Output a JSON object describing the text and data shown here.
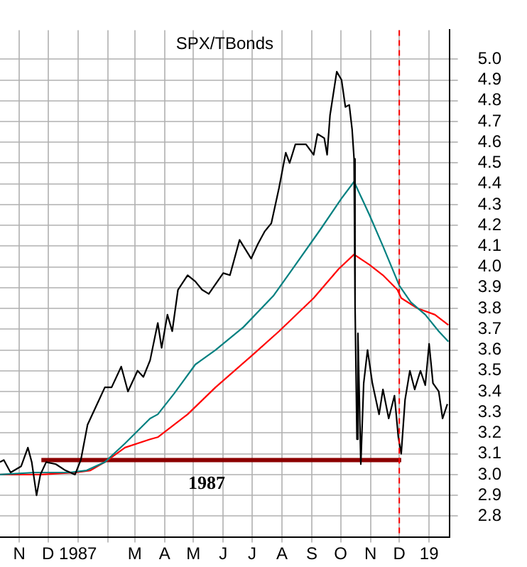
{
  "chart_data": {
    "type": "line",
    "title": "SPX/TBonds",
    "xlim": [
      "1986-10-12",
      "1988-01-22"
    ],
    "ylim": [
      2.7,
      5.14
    ],
    "xticks": [
      {
        "value": "1986-11-01",
        "label": "N"
      },
      {
        "value": "1986-12-01",
        "label": "D"
      },
      {
        "value": "1987-01-01",
        "label": "1987"
      },
      {
        "value": "1987-02-01",
        "label": null
      },
      {
        "value": "1987-03-01",
        "label": "M"
      },
      {
        "value": "1987-04-01",
        "label": "A"
      },
      {
        "value": "1987-05-01",
        "label": "M"
      },
      {
        "value": "1987-06-01",
        "label": "J"
      },
      {
        "value": "1987-07-01",
        "label": "J"
      },
      {
        "value": "1987-08-01",
        "label": "A"
      },
      {
        "value": "1987-09-01",
        "label": "S"
      },
      {
        "value": "1987-10-01",
        "label": "O"
      },
      {
        "value": "1987-11-01",
        "label": "N"
      },
      {
        "value": "1987-12-01",
        "label": "D"
      },
      {
        "value": "1988-01-01",
        "label": "19"
      }
    ],
    "yticks": [
      2.8,
      2.9,
      {
        "value": 3,
        "label": "3.0"
      },
      3.1,
      3.2,
      3.3,
      3.4,
      3.5,
      3.6,
      3.7,
      3.8,
      3.9,
      {
        "value": 4,
        "label": "4.0"
      },
      4.1,
      4.2,
      4.3,
      4.4,
      4.5,
      4.6,
      4.7,
      4.8,
      4.9,
      {
        "value": 5,
        "label": "5.0"
      }
    ],
    "grid": true,
    "legend": false,
    "marker": "none",
    "line_style": "solid",
    "series": [
      {
        "color": "#000000",
        "x": [
          "1986-10-12",
          "1986-10-16",
          "1986-10-23",
          "1986-11-03",
          "1986-11-10",
          "1986-11-14",
          "1986-11-19",
          "1986-11-23",
          "1986-11-29",
          "1986-12-09",
          "1986-12-19",
          "1986-12-29",
          "1987-01-04",
          "1987-01-11",
          "1987-01-21",
          "1987-01-29",
          "1987-02-05",
          "1987-02-15",
          "1987-02-22",
          "1987-03-04",
          "1987-03-10",
          "1987-03-17",
          "1987-03-25",
          "1987-03-29",
          "1987-04-04",
          "1987-04-09",
          "1987-04-15",
          "1987-04-25",
          "1987-05-03",
          "1987-05-10",
          "1987-05-17",
          "1987-06-01",
          "1987-06-08",
          "1987-06-18",
          "1987-06-30",
          "1987-07-07",
          "1987-07-14",
          "1987-07-21",
          "1987-07-29",
          "1987-08-05",
          "1987-08-09",
          "1987-08-15",
          "1987-08-26",
          "1987-09-03",
          "1987-09-07",
          "1987-09-14",
          "1987-09-17",
          "1987-09-20",
          "1987-09-27",
          "1987-10-02",
          "1987-10-06",
          "1987-10-10",
          "1987-10-13",
          "1987-10-15",
          "1987-10-16",
          "1987-10-18",
          "1987-10-19",
          "1987-10-22",
          "1987-10-25",
          "1987-10-29",
          "1987-11-03",
          "1987-11-10",
          "1987-11-14",
          "1987-11-20",
          "1987-11-26",
          "1987-11-30",
          "1987-12-03",
          "1987-12-07",
          "1987-12-12",
          "1987-12-17",
          "1987-12-23",
          "1987-12-28",
          "1988-01-01",
          "1988-01-05",
          "1988-01-11",
          "1988-01-15",
          "1988-01-20"
        ],
        "values": [
          3.06,
          3.07,
          3.01,
          3.04,
          3.13,
          3.06,
          2.9,
          3.0,
          3.06,
          3.05,
          3.02,
          3.0,
          3.07,
          3.24,
          3.34,
          3.42,
          3.42,
          3.52,
          3.4,
          3.5,
          3.47,
          3.55,
          3.73,
          3.61,
          3.77,
          3.69,
          3.89,
          3.96,
          3.93,
          3.89,
          3.87,
          3.97,
          3.96,
          4.13,
          4.04,
          4.11,
          4.17,
          4.21,
          4.38,
          4.55,
          4.5,
          4.59,
          4.59,
          4.54,
          4.64,
          4.62,
          4.54,
          4.73,
          4.94,
          4.9,
          4.77,
          4.78,
          4.66,
          4.52,
          3.82,
          3.17,
          3.68,
          3.05,
          3.44,
          3.6,
          3.44,
          3.29,
          3.41,
          3.27,
          3.38,
          3.18,
          3.1,
          3.36,
          3.5,
          3.41,
          3.5,
          3.43,
          3.63,
          3.44,
          3.4,
          3.27,
          3.34
        ]
      },
      {
        "color": "#008080",
        "x": [
          "1986-10-12",
          "1986-11-17",
          "1986-12-23",
          "1987-01-10",
          "1987-01-29",
          "1987-02-19",
          "1987-03-17",
          "1987-03-25",
          "1987-04-11",
          "1987-05-03",
          "1987-05-24",
          "1987-06-22",
          "1987-07-23",
          "1987-08-12",
          "1987-09-10",
          "1987-10-02",
          "1987-10-15",
          "1987-10-31",
          "1987-11-14",
          "1987-12-01",
          "1987-12-13",
          "1987-12-28",
          "1988-01-11",
          "1988-01-21"
        ],
        "values": [
          3.0,
          3.01,
          3.01,
          3.02,
          3.06,
          3.15,
          3.27,
          3.29,
          3.39,
          3.53,
          3.6,
          3.71,
          3.86,
          3.99,
          4.18,
          4.33,
          4.41,
          4.25,
          4.1,
          3.91,
          3.83,
          3.77,
          3.69,
          3.64
        ]
      },
      {
        "color": "#ff0000",
        "x": [
          "1986-10-12",
          "1986-11-24",
          "1986-12-30",
          "1987-01-14",
          "1987-01-29",
          "1987-02-19",
          "1987-03-17",
          "1987-03-25",
          "1987-04-25",
          "1987-05-24",
          "1987-06-30",
          "1987-07-29",
          "1987-09-03",
          "1987-09-29",
          "1987-10-15",
          "1987-10-31",
          "1987-11-14",
          "1987-11-29",
          "1987-12-03",
          "1987-12-20",
          "1988-01-07",
          "1988-01-21"
        ],
        "values": [
          3.0,
          3.0,
          3.01,
          3.02,
          3.06,
          3.13,
          3.17,
          3.18,
          3.29,
          3.42,
          3.57,
          3.69,
          3.85,
          3.99,
          4.06,
          4.01,
          3.96,
          3.89,
          3.85,
          3.8,
          3.77,
          3.72
        ]
      },
      {
        "color": "#8b0000",
        "x": [
          "1986-11-24",
          "1987-12-03"
        ],
        "values": [
          3.07,
          3.07
        ]
      }
    ],
    "ref_lines": [
      {
        "axis": "x",
        "value": "1987-12-01",
        "color": "#ff0000",
        "line_style": "dashed"
      }
    ],
    "annotations": [
      "1987"
    ]
  }
}
